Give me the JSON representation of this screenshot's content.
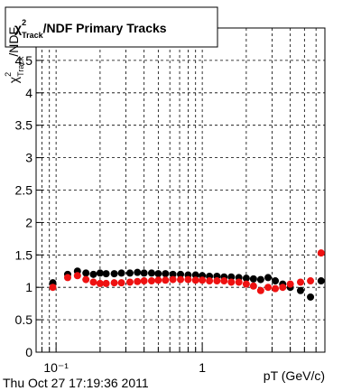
{
  "chart_data": {
    "type": "scatter",
    "title": [
      "χ",
      "2",
      "Track",
      "/NDF  Primary Tracks"
    ],
    "ylabel": [
      "χ",
      "2",
      "Track",
      "/NDF"
    ],
    "xlabel": "pT (GeV/c)",
    "footer": "Thu Oct 27 17:19:36 2011",
    "xlog": true,
    "grid": true,
    "xlim": [
      0.073,
      6.9
    ],
    "ylim": [
      0,
      5
    ],
    "xticks": [
      {
        "value": 0.1,
        "label": "10⁻¹"
      },
      1
    ],
    "x_minor_ticks": [
      0.08,
      0.09,
      0.2,
      0.3,
      0.4,
      0.5,
      0.6,
      0.7,
      0.8,
      0.9,
      2,
      3,
      4,
      5,
      6
    ],
    "yticks": [
      0,
      0.5,
      1,
      1.5,
      2,
      2.5,
      3,
      3.5,
      4,
      4.5
    ],
    "x": [
      0.095,
      0.12,
      0.14,
      0.16,
      0.18,
      0.2,
      0.22,
      0.25,
      0.28,
      0.32,
      0.36,
      0.4,
      0.45,
      0.5,
      0.56,
      0.63,
      0.71,
      0.8,
      0.9,
      1.0,
      1.12,
      1.26,
      1.41,
      1.58,
      1.78,
      2.0,
      2.24,
      2.51,
      2.82,
      3.16,
      3.55,
      4.0,
      4.7,
      5.5,
      6.5
    ],
    "series": [
      {
        "color": "#000000",
        "values": [
          1.07,
          1.2,
          1.25,
          1.22,
          1.2,
          1.22,
          1.21,
          1.21,
          1.22,
          1.22,
          1.23,
          1.22,
          1.22,
          1.21,
          1.21,
          1.2,
          1.2,
          1.19,
          1.19,
          1.18,
          1.17,
          1.17,
          1.16,
          1.16,
          1.15,
          1.14,
          1.13,
          1.12,
          1.15,
          1.1,
          1.05,
          1.0,
          0.95,
          0.85,
          1.1
        ]
      },
      {
        "color": "#ee1111",
        "values": [
          1.0,
          1.15,
          1.18,
          1.12,
          1.08,
          1.06,
          1.06,
          1.07,
          1.07,
          1.08,
          1.09,
          1.1,
          1.1,
          1.11,
          1.11,
          1.12,
          1.12,
          1.12,
          1.11,
          1.11,
          1.1,
          1.1,
          1.1,
          1.08,
          1.08,
          1.05,
          1.02,
          0.95,
          1.0,
          0.98,
          1.0,
          1.05,
          1.08,
          1.1,
          1.53
        ]
      }
    ]
  }
}
